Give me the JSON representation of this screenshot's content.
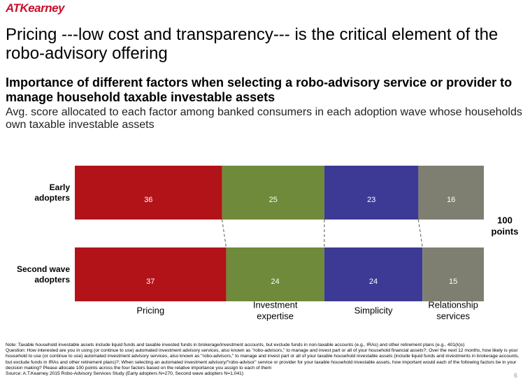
{
  "logo": "ATKearney",
  "title": "Pricing ---low cost and transparency--- is the critical element of the robo-advisory offering",
  "subtitle": "Importance of different factors when selecting a robo-advisory service or provider to manage household taxable investable assets",
  "description": "Avg. score allocated to each factor among banked consumers in each adoption wave whose households own taxable investable assets",
  "chart_data": {
    "type": "bar",
    "orientation": "horizontal",
    "stacked": true,
    "categories": [
      "Early adopters",
      "Second wave adopters"
    ],
    "series": [
      {
        "name": "Pricing",
        "values": [
          36,
          37
        ],
        "color": "#b21318"
      },
      {
        "name": "Investment expertise",
        "values": [
          25,
          24
        ],
        "color": "#6f8a3a"
      },
      {
        "name": "Simplicity",
        "values": [
          23,
          24
        ],
        "color": "#3c3a94"
      },
      {
        "name": "Relationship services",
        "values": [
          16,
          15
        ],
        "color": "#7f7f71"
      }
    ],
    "total_label": "100 points",
    "xlim": [
      0,
      100
    ],
    "grid": false,
    "legend": "bottom"
  },
  "notes": [
    "Note: Taxable household investable assets include liquid funds and taxable invested funds in brokerage/investment accounts, but exclude funds in non-taxable accounts (e.g., IRAs) and other retirement plans (e.g., 401(k)s)",
    "Question: How interested are you in using (or continue to use) automated investment advisory services, also known as \"robo-advisors,\" to manage and invest part or all of your household financial assets?; Over the next 12 months, how likely is your household to use (or continue to use) automated investment advisory services, also known as \"robo-advisors,\" to manage and invest part or all of your taxable household investable assets (include liquid funds and investments in brokerage accounts, but exclude funds in IRAs and other retirement plans)?; When selecting an automated investment advisory/\"robo-advisor\" service or provider for your taxable household investable assets, how important would each of the following factors be in your decision making? Please allocate 100 points across the four factors based on the relative importance you assign to each of them",
    "Source: A.T.Kearney 2015 Robo-Advisory Services Study (Early adopters N=270, Second wave adopters N=1,041)"
  ],
  "page_number": "6"
}
